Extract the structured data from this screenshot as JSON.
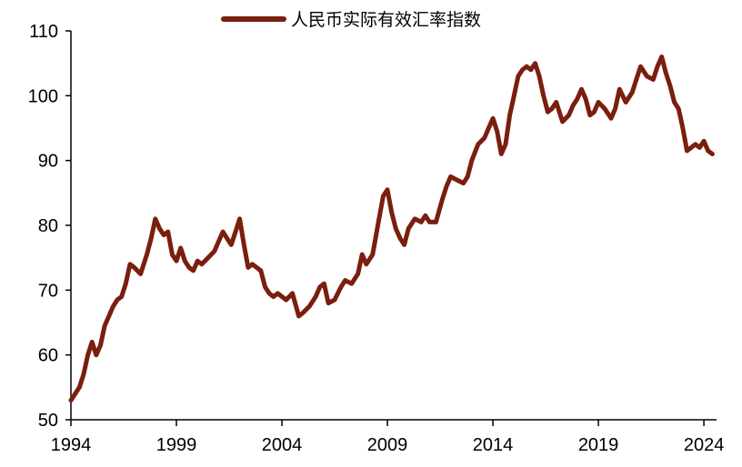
{
  "chart_data": {
    "type": "line",
    "title": "",
    "xlabel": "",
    "ylabel": "",
    "xlim": [
      1994,
      2024.6
    ],
    "ylim": [
      50,
      110
    ],
    "x_ticks": [
      1994,
      1999,
      2004,
      2009,
      2014,
      2019,
      2024
    ],
    "x_tick_labels": [
      "1994",
      "1999",
      "2004",
      "2009",
      "2014",
      "2019",
      "2024"
    ],
    "y_ticks": [
      50,
      60,
      70,
      80,
      90,
      100,
      110
    ],
    "y_tick_labels": [
      "50",
      "60",
      "70",
      "80",
      "90",
      "100",
      "110"
    ],
    "legend": {
      "position": "top-center"
    },
    "grid": false,
    "series": [
      {
        "name": "人民币实际有效汇率指数",
        "color": "#7a1e0e",
        "x": [
          1994.0,
          1994.2,
          1994.4,
          1994.6,
          1994.8,
          1995.0,
          1995.2,
          1995.4,
          1995.6,
          1995.8,
          1996.0,
          1996.2,
          1996.4,
          1996.6,
          1996.8,
          1997.0,
          1997.3,
          1997.6,
          1997.8,
          1998.0,
          1998.2,
          1998.4,
          1998.6,
          1998.8,
          1999.0,
          1999.2,
          1999.4,
          1999.6,
          1999.8,
          2000.0,
          2000.2,
          2000.5,
          2000.8,
          2001.0,
          2001.2,
          2001.4,
          2001.6,
          2001.8,
          2002.0,
          2002.2,
          2002.4,
          2002.6,
          2002.8,
          2003.0,
          2003.2,
          2003.4,
          2003.6,
          2003.8,
          2004.0,
          2004.2,
          2004.5,
          2004.8,
          2005.0,
          2005.3,
          2005.6,
          2005.8,
          2006.0,
          2006.2,
          2006.5,
          2006.8,
          2007.0,
          2007.3,
          2007.6,
          2007.8,
          2008.0,
          2008.3,
          2008.6,
          2008.8,
          2009.0,
          2009.2,
          2009.4,
          2009.6,
          2009.8,
          2010.0,
          2010.3,
          2010.6,
          2010.8,
          2011.0,
          2011.3,
          2011.6,
          2011.8,
          2012.0,
          2012.3,
          2012.6,
          2012.8,
          2013.0,
          2013.3,
          2013.6,
          2013.8,
          2014.0,
          2014.2,
          2014.4,
          2014.6,
          2014.8,
          2015.0,
          2015.2,
          2015.4,
          2015.6,
          2015.8,
          2016.0,
          2016.2,
          2016.4,
          2016.6,
          2016.8,
          2017.0,
          2017.3,
          2017.6,
          2017.8,
          2018.0,
          2018.2,
          2018.4,
          2018.6,
          2018.8,
          2019.0,
          2019.3,
          2019.6,
          2019.8,
          2020.0,
          2020.3,
          2020.6,
          2020.8,
          2021.0,
          2021.3,
          2021.6,
          2021.8,
          2022.0,
          2022.2,
          2022.4,
          2022.6,
          2022.8,
          2023.0,
          2023.2,
          2023.4,
          2023.6,
          2023.8,
          2024.0,
          2024.2,
          2024.4
        ],
        "values": [
          53.0,
          54.0,
          55.0,
          57.0,
          60.0,
          62.0,
          60.0,
          61.5,
          64.5,
          66.0,
          67.5,
          68.5,
          69.0,
          71.0,
          74.0,
          73.5,
          72.5,
          75.5,
          78.0,
          81.0,
          79.5,
          78.5,
          79.0,
          75.5,
          74.5,
          76.5,
          74.5,
          73.5,
          73.0,
          74.5,
          74.0,
          75.0,
          76.0,
          77.5,
          79.0,
          78.0,
          77.0,
          79.0,
          81.0,
          77.0,
          73.5,
          74.0,
          73.5,
          73.0,
          70.5,
          69.5,
          69.0,
          69.5,
          69.0,
          68.5,
          69.5,
          66.0,
          66.5,
          67.5,
          69.0,
          70.5,
          71.0,
          68.0,
          68.5,
          70.5,
          71.5,
          71.0,
          72.5,
          75.5,
          74.0,
          75.5,
          81.0,
          84.5,
          85.5,
          82.0,
          79.5,
          78.0,
          77.0,
          79.5,
          81.0,
          80.5,
          81.5,
          80.5,
          80.5,
          84.0,
          86.0,
          87.5,
          87.0,
          86.5,
          87.5,
          90.0,
          92.5,
          93.5,
          95.0,
          96.5,
          94.5,
          91.0,
          92.5,
          97.0,
          100.0,
          103.0,
          104.0,
          104.5,
          104.0,
          105.0,
          103.0,
          100.0,
          97.5,
          98.0,
          99.0,
          96.0,
          97.0,
          98.5,
          99.5,
          101.0,
          99.5,
          97.0,
          97.5,
          99.0,
          98.0,
          96.5,
          98.0,
          101.0,
          99.0,
          100.5,
          102.5,
          104.5,
          103.0,
          102.5,
          104.5,
          106.0,
          103.5,
          101.5,
          99.0,
          98.0,
          95.0,
          91.5,
          92.0,
          92.5,
          92.0,
          93.0,
          91.5,
          91.0
        ]
      }
    ]
  }
}
